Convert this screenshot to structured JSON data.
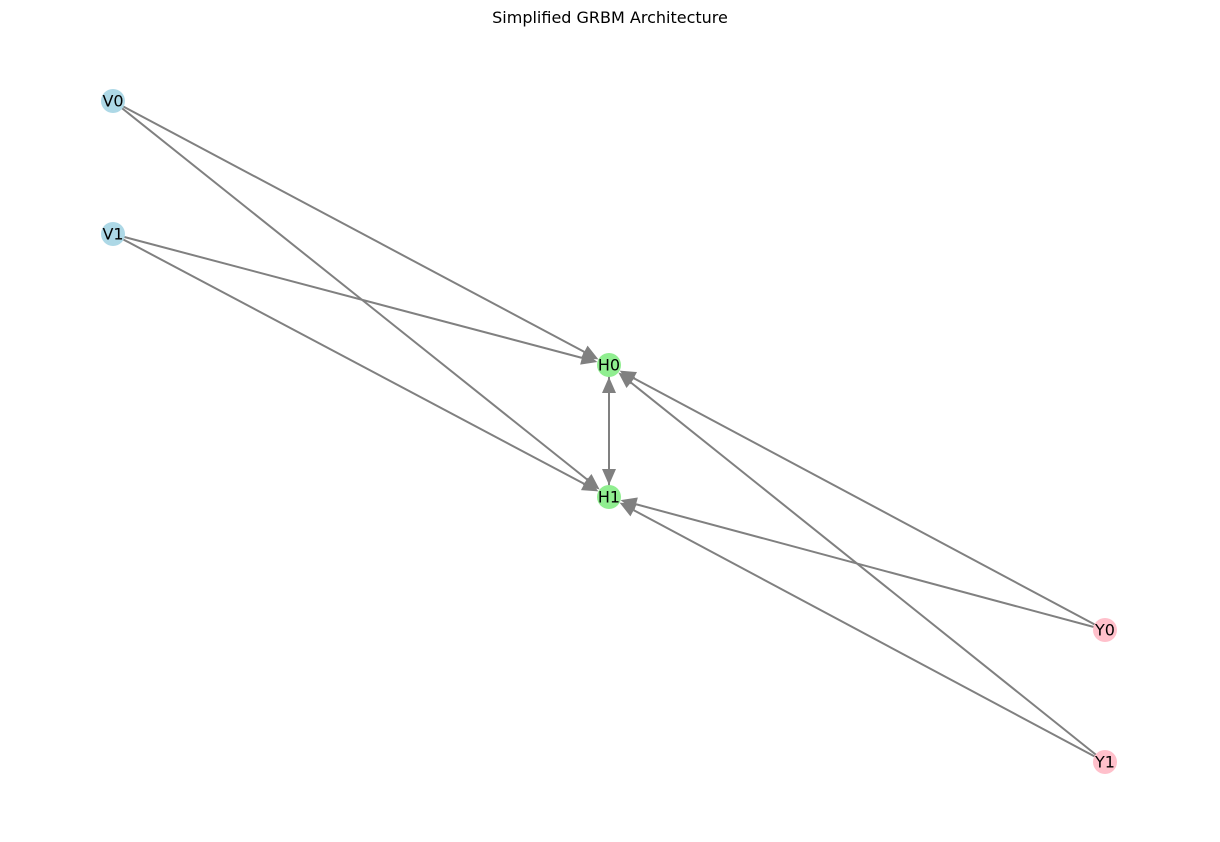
{
  "title": "Simplified GRBM Architecture",
  "colors": {
    "edge": "#808080",
    "visible": "#add8e6",
    "hidden": "#90ee90",
    "label": "#ffc0cb"
  },
  "nodes": [
    {
      "id": "V0",
      "label": "V0",
      "group": "visible"
    },
    {
      "id": "V1",
      "label": "V1",
      "group": "visible"
    },
    {
      "id": "H0",
      "label": "H0",
      "group": "hidden"
    },
    {
      "id": "H1",
      "label": "H1",
      "group": "hidden"
    },
    {
      "id": "Y0",
      "label": "Y0",
      "group": "label"
    },
    {
      "id": "Y1",
      "label": "Y1",
      "group": "label"
    }
  ],
  "edges": [
    {
      "from": "V0",
      "to": "H0"
    },
    {
      "from": "V0",
      "to": "H1"
    },
    {
      "from": "V1",
      "to": "H0"
    },
    {
      "from": "V1",
      "to": "H1"
    },
    {
      "from": "Y0",
      "to": "H0"
    },
    {
      "from": "Y0",
      "to": "H1"
    },
    {
      "from": "Y1",
      "to": "H0"
    },
    {
      "from": "Y1",
      "to": "H1"
    },
    {
      "from": "H0",
      "to": "H1"
    },
    {
      "from": "H1",
      "to": "H0"
    }
  ]
}
